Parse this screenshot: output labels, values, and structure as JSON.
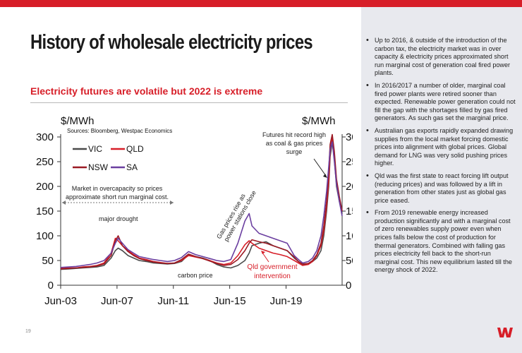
{
  "slide": {
    "title": "History of wholesale electricity prices",
    "subtitle": "Electricity futures are volatile but 2022 is extreme",
    "page_number": "19",
    "accent": "#d71e28",
    "panel_color": "#e8e9ee"
  },
  "bullets": [
    "Up to 2016, & outside of the introduction of the carbon tax, the electricity market was in over capacity & electricity prices approximated short run marginal cost of generation coal fired power plants.",
    "In 2016/2017 a number of older, marginal coal fired power plants were retired sooner than expected. Renewable power generation could not fill the gap with the shortages filled by gas fired generators. As such gas set the marginal price.",
    "Australian gas exports rapidly expanded drawing supplies from the  local market forcing domestic prices into alignment with global prices. Global demand for LNG was very solid pushing prices higher.",
    "Qld was the first state to react forcing lift output (reducing prices) and was followed by a lift in generation from other states just as global gas price eased.",
    "From 2019 renewable energy increased production significantly and with a marginal cost of zero renewables supply power even when prices falls below the cost of production for thermal generators. Combined with falling gas prices electricity fell back to the short-run marginal cost. This new equilibrium lasted till the energy shock of 2022."
  ],
  "logo": {
    "name": "westpac-w-logo",
    "color": "#d71e28"
  },
  "chart_data": {
    "type": "line",
    "ylabel_left": "$/MWh",
    "ylabel_right": "$/MWh",
    "source": "Sources: Bloomberg, Westpac Economics",
    "ylim": [
      0,
      300
    ],
    "yticks": [
      "0",
      "50",
      "100",
      "150",
      "200",
      "250",
      "300"
    ],
    "xticks": [
      "Jun-03",
      "Jun-07",
      "Jun-11",
      "Jun-15",
      "Jun-19"
    ],
    "xtick_values": [
      2003.42,
      2007.42,
      2011.42,
      2015.42,
      2019.42
    ],
    "xlim": [
      2003.42,
      2023.4
    ],
    "grid": false,
    "legend_position": "top-left",
    "annotations": {
      "overcapacity": "Market in overcapacity so prices approximate short run marginal cost.",
      "drought": "major drought",
      "carbon": "carbon price",
      "gas": "Gas prices rise as power stations close",
      "qld": "Qld government intervention",
      "futures": "Futures hit record high as coal & gas prices surge"
    },
    "series": [
      {
        "name": "VIC",
        "color": "#4a4a4a",
        "x": [
          2003.42,
          2004.0,
          2004.5,
          2005.0,
          2005.5,
          2006.0,
          2006.5,
          2007.0,
          2007.3,
          2007.5,
          2007.8,
          2008.2,
          2008.6,
          2009.0,
          2009.5,
          2010.0,
          2010.5,
          2011.0,
          2011.5,
          2012.0,
          2012.5,
          2013.0,
          2013.5,
          2014.0,
          2014.5,
          2015.0,
          2015.5,
          2016.0,
          2016.5,
          2016.8,
          2017.0,
          2017.5,
          2018.0,
          2018.5,
          2019.0,
          2019.5,
          2020.0,
          2020.3,
          2020.6,
          2021.0,
          2021.3,
          2021.6,
          2021.9,
          2022.1,
          2022.3,
          2022.45,
          2022.55,
          2022.7,
          2022.85,
          2023.0,
          2023.2,
          2023.4
        ],
        "y": [
          32,
          33,
          34,
          35,
          36,
          37,
          40,
          55,
          70,
          75,
          70,
          60,
          55,
          50,
          48,
          45,
          44,
          43,
          44,
          48,
          62,
          58,
          55,
          50,
          42,
          37,
          35,
          40,
          50,
          65,
          80,
          85,
          88,
          80,
          75,
          70,
          55,
          48,
          42,
          43,
          48,
          55,
          70,
          100,
          150,
          200,
          260,
          290,
          255,
          200,
          170,
          145
        ]
      },
      {
        "name": "QLD",
        "color": "#d71e28",
        "x": [
          2003.42,
          2004.0,
          2004.5,
          2005.0,
          2005.5,
          2006.0,
          2006.5,
          2007.0,
          2007.3,
          2007.5,
          2007.8,
          2008.2,
          2008.6,
          2009.0,
          2009.5,
          2010.0,
          2010.5,
          2011.0,
          2011.5,
          2012.0,
          2012.5,
          2013.0,
          2013.5,
          2014.0,
          2014.5,
          2015.0,
          2015.5,
          2016.0,
          2016.5,
          2016.8,
          2017.0,
          2017.5,
          2018.0,
          2018.5,
          2019.0,
          2019.5,
          2020.0,
          2020.3,
          2020.6,
          2021.0,
          2021.3,
          2021.6,
          2021.9,
          2022.1,
          2022.3,
          2022.45,
          2022.55,
          2022.7,
          2022.85,
          2023.0,
          2023.2,
          2023.4
        ],
        "y": [
          34,
          35,
          35,
          37,
          38,
          40,
          45,
          65,
          95,
          90,
          80,
          70,
          62,
          55,
          52,
          48,
          46,
          44,
          45,
          50,
          60,
          57,
          54,
          50,
          45,
          42,
          45,
          60,
          82,
          90,
          85,
          75,
          70,
          65,
          62,
          58,
          50,
          45,
          40,
          42,
          48,
          60,
          80,
          110,
          160,
          210,
          270,
          300,
          260,
          210,
          175,
          150
        ]
      },
      {
        "name": "NSW",
        "color": "#9b1a24",
        "x": [
          2003.42,
          2004.0,
          2004.5,
          2005.0,
          2005.5,
          2006.0,
          2006.5,
          2007.0,
          2007.3,
          2007.5,
          2007.8,
          2008.2,
          2008.6,
          2009.0,
          2009.5,
          2010.0,
          2010.5,
          2011.0,
          2011.5,
          2012.0,
          2012.5,
          2013.0,
          2013.5,
          2014.0,
          2014.5,
          2015.0,
          2015.5,
          2016.0,
          2016.5,
          2016.8,
          2017.0,
          2017.5,
          2018.0,
          2018.5,
          2019.0,
          2019.5,
          2020.0,
          2020.3,
          2020.6,
          2021.0,
          2021.3,
          2021.6,
          2021.9,
          2022.1,
          2022.3,
          2022.45,
          2022.55,
          2022.7,
          2022.85,
          2023.0,
          2023.2,
          2023.4
        ],
        "y": [
          33,
          34,
          35,
          36,
          37,
          39,
          43,
          60,
          90,
          100,
          80,
          68,
          60,
          54,
          50,
          47,
          45,
          44,
          45,
          52,
          63,
          58,
          54,
          49,
          44,
          40,
          42,
          52,
          70,
          85,
          92,
          88,
          85,
          80,
          75,
          70,
          57,
          48,
          43,
          44,
          50,
          62,
          85,
          120,
          170,
          230,
          285,
          305,
          270,
          215,
          180,
          150
        ]
      },
      {
        "name": "SA",
        "color": "#6b3fa0",
        "x": [
          2003.42,
          2004.0,
          2004.5,
          2005.0,
          2005.5,
          2006.0,
          2006.5,
          2007.0,
          2007.3,
          2007.5,
          2007.8,
          2008.2,
          2008.6,
          2009.0,
          2009.5,
          2010.0,
          2010.5,
          2011.0,
          2011.5,
          2012.0,
          2012.5,
          2013.0,
          2013.5,
          2014.0,
          2014.5,
          2015.0,
          2015.5,
          2016.0,
          2016.5,
          2016.8,
          2017.0,
          2017.5,
          2018.0,
          2018.5,
          2019.0,
          2019.5,
          2020.0,
          2020.3,
          2020.6,
          2021.0,
          2021.3,
          2021.6,
          2021.9,
          2022.1,
          2022.3,
          2022.45,
          2022.55,
          2022.7,
          2022.85,
          2023.0,
          2023.2,
          2023.4
        ],
        "y": [
          36,
          37,
          38,
          40,
          42,
          45,
          50,
          65,
          85,
          95,
          85,
          72,
          65,
          58,
          55,
          52,
          50,
          48,
          50,
          56,
          68,
          62,
          58,
          54,
          50,
          48,
          52,
          85,
          130,
          145,
          120,
          105,
          100,
          95,
          90,
          85,
          60,
          52,
          45,
          48,
          55,
          70,
          100,
          140,
          190,
          240,
          275,
          290,
          250,
          205,
          170,
          140
        ]
      }
    ]
  }
}
